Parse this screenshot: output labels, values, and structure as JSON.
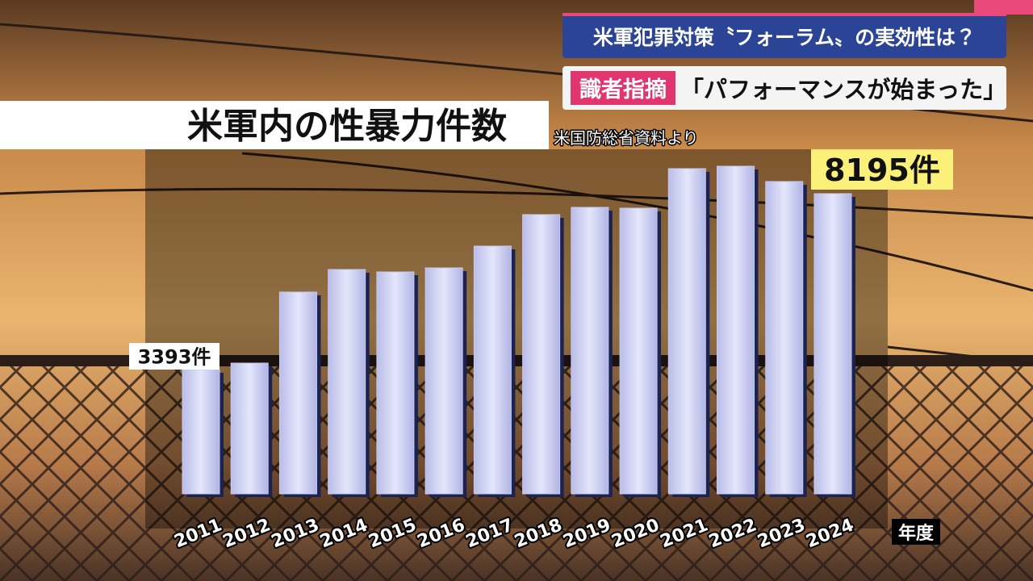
{
  "chart_data": {
    "type": "bar",
    "title": "米軍内の性暴力件数",
    "source": "米国防総省資料より",
    "x_label": "年度",
    "categories": [
      "2011",
      "2012",
      "2013",
      "2014",
      "2015",
      "2016",
      "2017",
      "2018",
      "2019",
      "2020",
      "2021",
      "2022",
      "2023",
      "2024"
    ],
    "values": [
      3393,
      3569,
      5508,
      6124,
      6058,
      6168,
      6763,
      7623,
      7821,
      7799,
      8878,
      8944,
      8526,
      8195
    ],
    "value_labels": [
      "3393件",
      null,
      null,
      null,
      null,
      null,
      null,
      null,
      null,
      null,
      null,
      null,
      null,
      "8195件"
    ],
    "color": "#c8cbf0"
  },
  "header": {
    "headline": "米軍犯罪対策〝フォーラム〟の実効性は？",
    "tag": "識者指摘",
    "subheadline": "「パフォーマンスが始まった」"
  }
}
